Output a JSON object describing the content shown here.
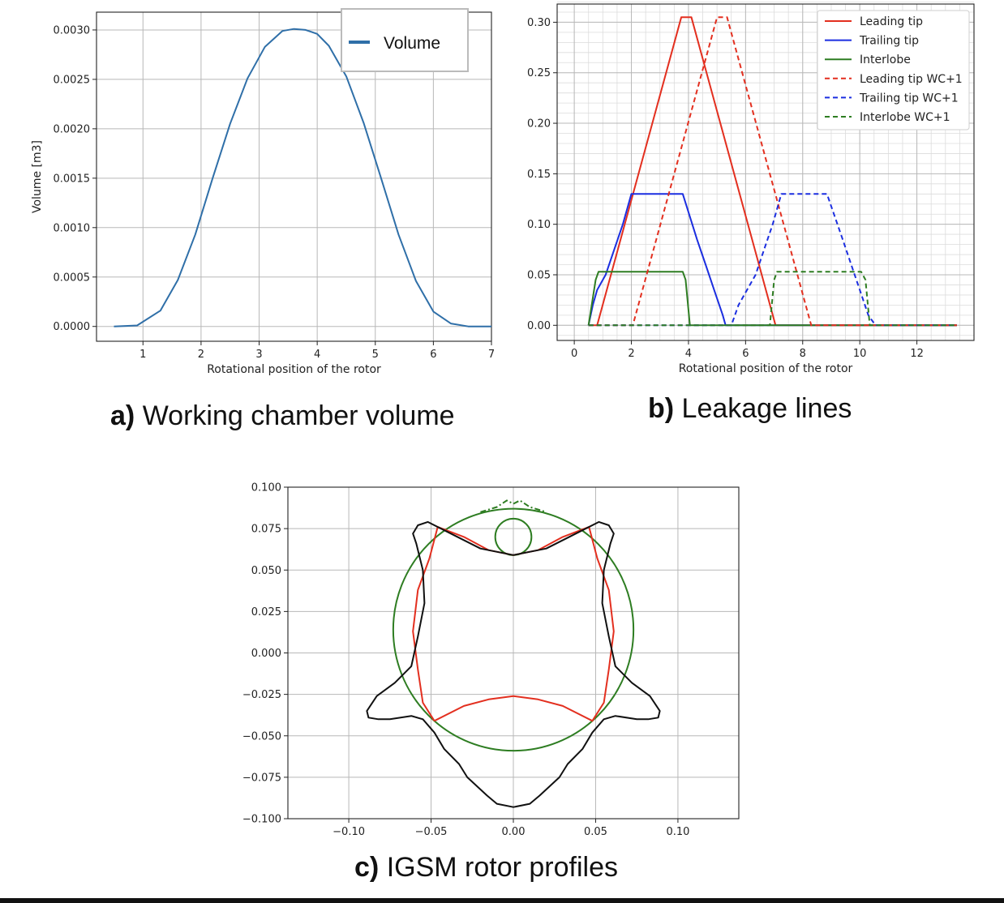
{
  "captions": {
    "a_prefix": "a)",
    "a_text": "Working chamber volume",
    "b_prefix": "b)",
    "b_text": "Leakage lines",
    "c_prefix": "c)",
    "c_text": "IGSM rotor profiles"
  },
  "chart_data": [
    {
      "type": "line",
      "panel": "a",
      "title": "",
      "xlabel": "Rotational position of the rotor",
      "ylabel": "Volume [m3]",
      "xlim": [
        0.2,
        7.0
      ],
      "ylim": [
        -0.00015,
        0.00318
      ],
      "xticks": [
        1,
        2,
        3,
        4,
        5,
        6,
        7
      ],
      "xtick_labels": [
        "1",
        "2",
        "3",
        "4",
        "5",
        "6",
        "7"
      ],
      "yticks": [
        0,
        0.0005,
        0.001,
        0.0015,
        0.002,
        0.0025,
        0.003
      ],
      "ytick_labels": [
        "0.0000",
        "0.0005",
        "0.0010",
        "0.0015",
        "0.0020",
        "0.0025",
        "0.0030"
      ],
      "grid": true,
      "legend_position": "top-right",
      "series": [
        {
          "name": "Volume",
          "color": "#2f6fa8",
          "style": "solid",
          "x": [
            0.5,
            0.9,
            1.3,
            1.6,
            1.9,
            2.2,
            2.5,
            2.8,
            3.1,
            3.4,
            3.6,
            3.8,
            4.0,
            4.2,
            4.5,
            4.8,
            5.1,
            5.4,
            5.7,
            6.0,
            6.3,
            6.6,
            7.0
          ],
          "y": [
            0.0,
            1e-05,
            0.00016,
            0.00047,
            0.00093,
            0.0015,
            0.00205,
            0.00251,
            0.00283,
            0.00299,
            0.00301,
            0.003,
            0.00296,
            0.00284,
            0.00253,
            0.00206,
            0.0015,
            0.00093,
            0.00046,
            0.00015,
            3e-05,
            0.0,
            0.0
          ]
        }
      ]
    },
    {
      "type": "line",
      "panel": "b",
      "title": "",
      "xlabel": "Rotational position of the rotor",
      "ylabel": "",
      "xlim": [
        -0.6,
        14.0
      ],
      "ylim": [
        -0.015,
        0.318
      ],
      "xticks": [
        0,
        2,
        4,
        6,
        8,
        10,
        12
      ],
      "xtick_labels": [
        "0",
        "2",
        "4",
        "6",
        "8",
        "10",
        "12"
      ],
      "yticks": [
        0.0,
        0.05,
        0.1,
        0.15,
        0.2,
        0.25,
        0.3
      ],
      "ytick_labels": [
        "0.00",
        "0.05",
        "0.10",
        "0.15",
        "0.20",
        "0.25",
        "0.30"
      ],
      "grid": true,
      "minor_grid": true,
      "legend_position": "top-right",
      "series": [
        {
          "name": "Leading tip",
          "color": "#e32f1f",
          "style": "solid",
          "x": [
            0.5,
            0.8,
            3.75,
            4.1,
            7.05,
            13.4
          ],
          "y": [
            0.0,
            0.0,
            0.305,
            0.305,
            0.0,
            0.0
          ]
        },
        {
          "name": "Trailing tip",
          "color": "#1b2ee0",
          "style": "solid",
          "x": [
            0.5,
            0.65,
            0.8,
            1.1,
            1.4,
            1.7,
            2.0,
            3.8,
            4.3,
            4.6,
            4.9,
            5.2,
            5.3,
            13.4
          ],
          "y": [
            0.0,
            0.02,
            0.035,
            0.05,
            0.075,
            0.1,
            0.13,
            0.13,
            0.085,
            0.06,
            0.035,
            0.01,
            0.0,
            0.0
          ]
        },
        {
          "name": "Interlobe",
          "color": "#2e7d22",
          "style": "solid",
          "x": [
            0.5,
            0.75,
            0.85,
            3.8,
            3.9,
            4.05,
            13.4
          ],
          "y": [
            0.0,
            0.045,
            0.053,
            0.053,
            0.045,
            0.0,
            0.0
          ]
        },
        {
          "name": "Leading tip WC+1",
          "color": "#e32f1f",
          "style": "dashed",
          "x": [
            0.5,
            2.05,
            5.0,
            5.35,
            8.3,
            13.4
          ],
          "y": [
            0.0,
            0.0,
            0.305,
            0.305,
            0.0,
            0.0
          ]
        },
        {
          "name": "Trailing tip WC+1",
          "color": "#1b2ee0",
          "style": "dashed",
          "x": [
            0.5,
            5.5,
            5.75,
            6.05,
            6.35,
            6.65,
            6.95,
            7.25,
            8.85,
            9.4,
            9.7,
            10.0,
            10.3,
            10.55,
            13.4
          ],
          "y": [
            0.0,
            0.0,
            0.02,
            0.035,
            0.05,
            0.075,
            0.1,
            0.13,
            0.13,
            0.085,
            0.06,
            0.035,
            0.01,
            0.0,
            0.0
          ]
        },
        {
          "name": "Interlobe WC+1",
          "color": "#2e7d22",
          "style": "dashed",
          "x": [
            0.5,
            6.85,
            7.0,
            7.1,
            10.05,
            10.2,
            10.35,
            13.4
          ],
          "y": [
            0.0,
            0.0,
            0.045,
            0.053,
            0.053,
            0.045,
            0.0,
            0.0
          ]
        }
      ]
    },
    {
      "type": "line",
      "panel": "c",
      "title": "",
      "xlabel": "",
      "ylabel": "",
      "xlim": [
        -0.137,
        0.137
      ],
      "ylim": [
        -0.1,
        0.1
      ],
      "xticks": [
        -0.1,
        -0.05,
        0.0,
        0.05,
        0.1
      ],
      "xtick_labels": [
        "−0.10",
        "−0.05",
        "0.00",
        "0.05",
        "0.10"
      ],
      "yticks": [
        0.1,
        0.075,
        0.05,
        0.025,
        0.0,
        -0.025,
        -0.05,
        -0.075,
        -0.1
      ],
      "ytick_labels": [
        "0.100",
        "0.075",
        "0.050",
        "0.025",
        "0.000",
        "−0.025",
        "−0.050",
        "−0.075",
        "−0.100"
      ],
      "grid": true,
      "series": [
        {
          "color": "#2e7d22",
          "style": "solid",
          "shape": "circle",
          "center": [
            0.0,
            0.014
          ],
          "radius": 0.073
        },
        {
          "color": "#2e7d22",
          "style": "solid",
          "shape": "circle",
          "center": [
            0.0,
            0.07
          ],
          "radius": 0.011
        },
        {
          "color": "#2e7d22",
          "style": "dashdot",
          "x": [
            -0.02,
            -0.01,
            -0.004,
            0.0,
            0.004,
            0.01,
            0.02
          ],
          "y": [
            0.085,
            0.088,
            0.092,
            0.09,
            0.092,
            0.088,
            0.085
          ]
        },
        {
          "color": "#e32f1f",
          "style": "solid",
          "x": [
            -0.048,
            -0.03,
            -0.015,
            0.0,
            0.015,
            0.03,
            0.048,
            0.055,
            0.058,
            0.061,
            0.058,
            0.051,
            0.046,
            0.03,
            0.015,
            0.0,
            -0.015,
            -0.03,
            -0.046,
            -0.051,
            -0.058,
            -0.061,
            -0.058,
            -0.055,
            -0.048
          ],
          "y": [
            -0.041,
            -0.032,
            -0.028,
            -0.026,
            -0.028,
            -0.032,
            -0.041,
            -0.03,
            -0.01,
            0.013,
            0.038,
            0.057,
            0.076,
            0.07,
            0.062,
            0.059,
            0.062,
            0.07,
            0.076,
            0.057,
            0.038,
            0.013,
            -0.01,
            -0.03,
            -0.041
          ]
        },
        {
          "color": "#111111",
          "style": "solid",
          "x": [
            0.0,
            0.02,
            0.04,
            0.052,
            0.058,
            0.061,
            0.059,
            0.055,
            0.054,
            0.058,
            0.062,
            0.072,
            0.083,
            0.089,
            0.088,
            0.082,
            0.075,
            0.062,
            0.055,
            0.048,
            0.042,
            0.033,
            0.028,
            0.016,
            0.01,
            0.0,
            -0.01,
            -0.016,
            -0.028,
            -0.033,
            -0.042,
            -0.048,
            -0.055,
            -0.062,
            -0.075,
            -0.082,
            -0.088,
            -0.089,
            -0.083,
            -0.072,
            -0.062,
            -0.058,
            -0.054,
            -0.055,
            -0.059,
            -0.061,
            -0.058,
            -0.052,
            -0.04,
            -0.02,
            0.0
          ],
          "y": [
            0.059,
            0.063,
            0.073,
            0.079,
            0.077,
            0.072,
            0.066,
            0.05,
            0.03,
            0.01,
            -0.008,
            -0.018,
            -0.026,
            -0.035,
            -0.039,
            -0.04,
            -0.04,
            -0.038,
            -0.04,
            -0.048,
            -0.058,
            -0.067,
            -0.075,
            -0.086,
            -0.091,
            -0.093,
            -0.091,
            -0.086,
            -0.075,
            -0.067,
            -0.058,
            -0.048,
            -0.04,
            -0.038,
            -0.04,
            -0.04,
            -0.039,
            -0.035,
            -0.026,
            -0.018,
            -0.008,
            0.01,
            0.03,
            0.05,
            0.066,
            0.072,
            0.077,
            0.079,
            0.073,
            0.063,
            0.059
          ]
        }
      ]
    }
  ]
}
